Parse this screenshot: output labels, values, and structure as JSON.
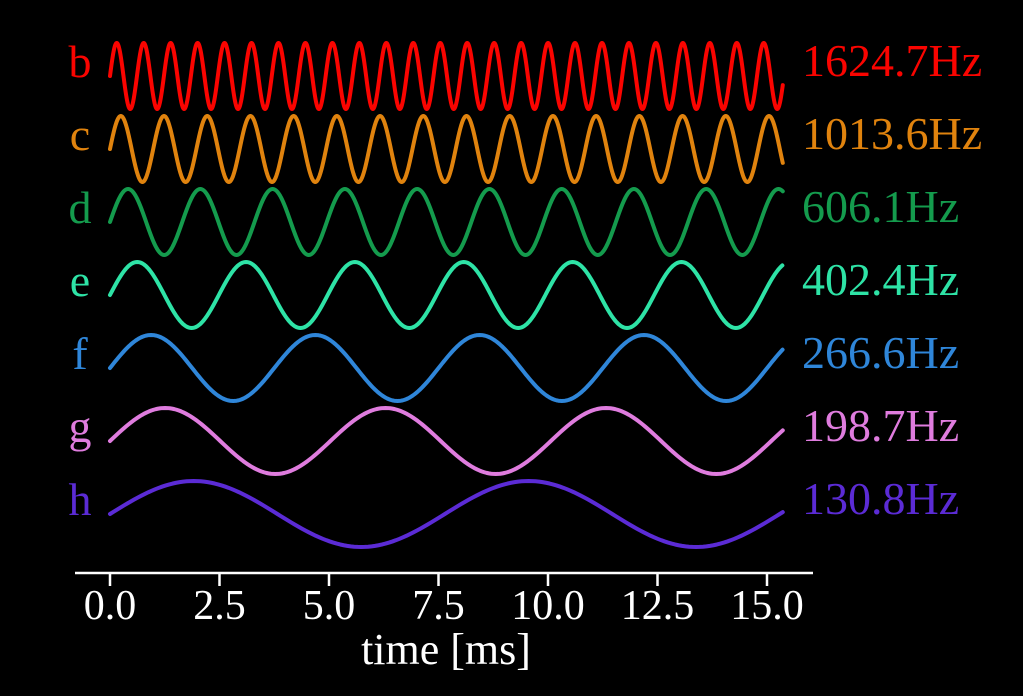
{
  "chart_data": {
    "type": "line",
    "title": "",
    "xlabel": "time [ms]",
    "x_unit": "ms",
    "x_range_ms": [
      0,
      15.36
    ],
    "x_tick_values": [
      0,
      2.5,
      5,
      7.5,
      10,
      12.5,
      15
    ],
    "x_tick_labels": [
      "0.0",
      "2.5",
      "5.0",
      "7.5",
      "10.0",
      "12.5",
      "15.0"
    ],
    "background_color": "#000000",
    "axis_color": "#ffffff",
    "grid": false,
    "waveform": "sine",
    "series": [
      {
        "label": "b",
        "frequency_hz": 1624.7,
        "frequency_label": "1624.7Hz",
        "color": "#fa0400",
        "amplitude": 1.0,
        "phase": 0.0
      },
      {
        "label": "c",
        "frequency_hz": 1013.6,
        "frequency_label": "1013.6Hz",
        "color": "#e0830e",
        "amplitude": 1.0,
        "phase": 0.0
      },
      {
        "label": "d",
        "frequency_hz": 606.1,
        "frequency_label": "606.1Hz",
        "color": "#149b4d",
        "amplitude": 1.0,
        "phase": 0.0
      },
      {
        "label": "e",
        "frequency_hz": 402.4,
        "frequency_label": "402.4Hz",
        "color": "#2ee3a6",
        "amplitude": 1.0,
        "phase": 0.0
      },
      {
        "label": "f",
        "frequency_hz": 266.6,
        "frequency_label": "266.6Hz",
        "color": "#2f86d9",
        "amplitude": 1.0,
        "phase": 0.0
      },
      {
        "label": "g",
        "frequency_hz": 198.7,
        "frequency_label": "198.7Hz",
        "color": "#df7cde",
        "amplitude": 1.0,
        "phase": 0.0
      },
      {
        "label": "h",
        "frequency_hz": 130.8,
        "frequency_label": "130.8Hz",
        "color": "#5b2bd5",
        "amplitude": 1.0,
        "phase": 0.0
      }
    ]
  }
}
